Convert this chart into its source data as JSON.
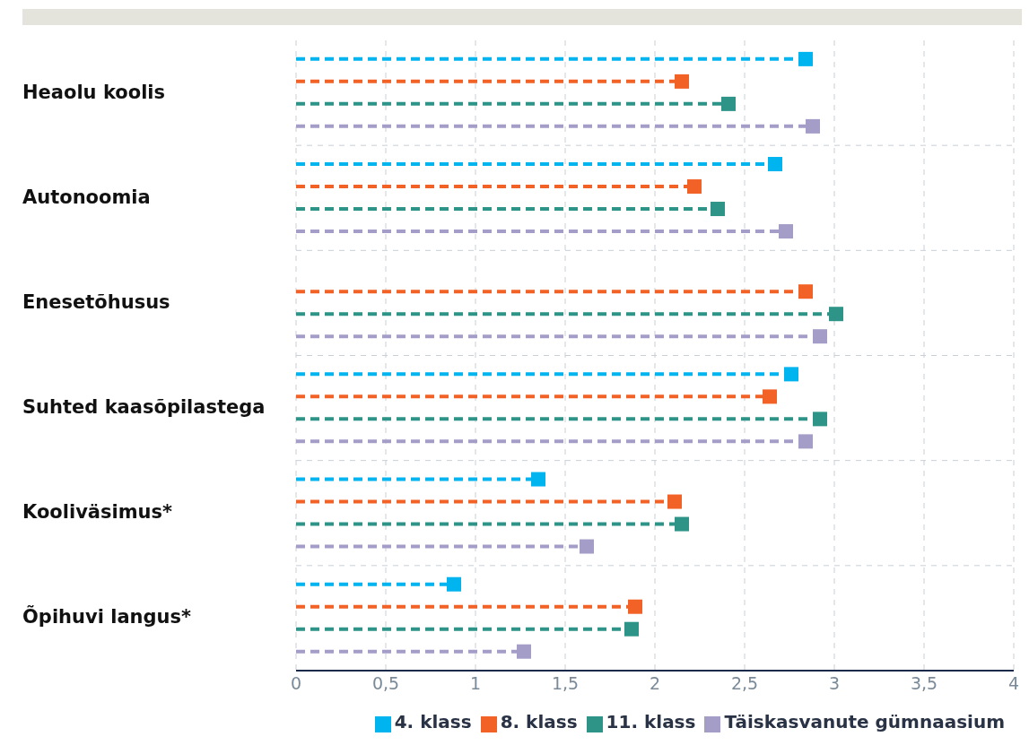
{
  "chart_data": {
    "type": "lollipop",
    "orientation": "horizontal",
    "categories": [
      "Heaolu koolis",
      "Autonoomia",
      "Enesetõhusus",
      "Suhted kaasõpilastega",
      "Kooliväsimus*",
      "Õpihuvi langus*"
    ],
    "series": [
      {
        "name": "4. klass",
        "color": "#00b4f0",
        "values": [
          2.84,
          2.67,
          null,
          2.76,
          1.35,
          0.88
        ]
      },
      {
        "name": "8. klass",
        "color": "#f26226",
        "values": [
          2.15,
          2.22,
          2.84,
          2.64,
          2.11,
          1.89
        ]
      },
      {
        "name": "11. klass",
        "color": "#2e9488",
        "values": [
          2.41,
          2.35,
          3.01,
          2.92,
          2.15,
          1.87
        ]
      },
      {
        "name": "Täiskasvanute gümnaasium",
        "color": "#a49dc8",
        "values": [
          2.88,
          2.73,
          2.92,
          2.84,
          1.62,
          1.27
        ]
      }
    ],
    "xlim": [
      0,
      4
    ],
    "xticks": [
      0,
      {
        "value": 0.5,
        "label": "0,5"
      },
      1,
      {
        "value": 1.5,
        "label": "1,5"
      },
      2,
      {
        "value": 2.5,
        "label": "2,5"
      },
      3,
      {
        "value": 3.5,
        "label": "3,5"
      },
      4
    ],
    "grid": true,
    "legend": "bottom",
    "marker": "square",
    "line_style": "dashed"
  }
}
